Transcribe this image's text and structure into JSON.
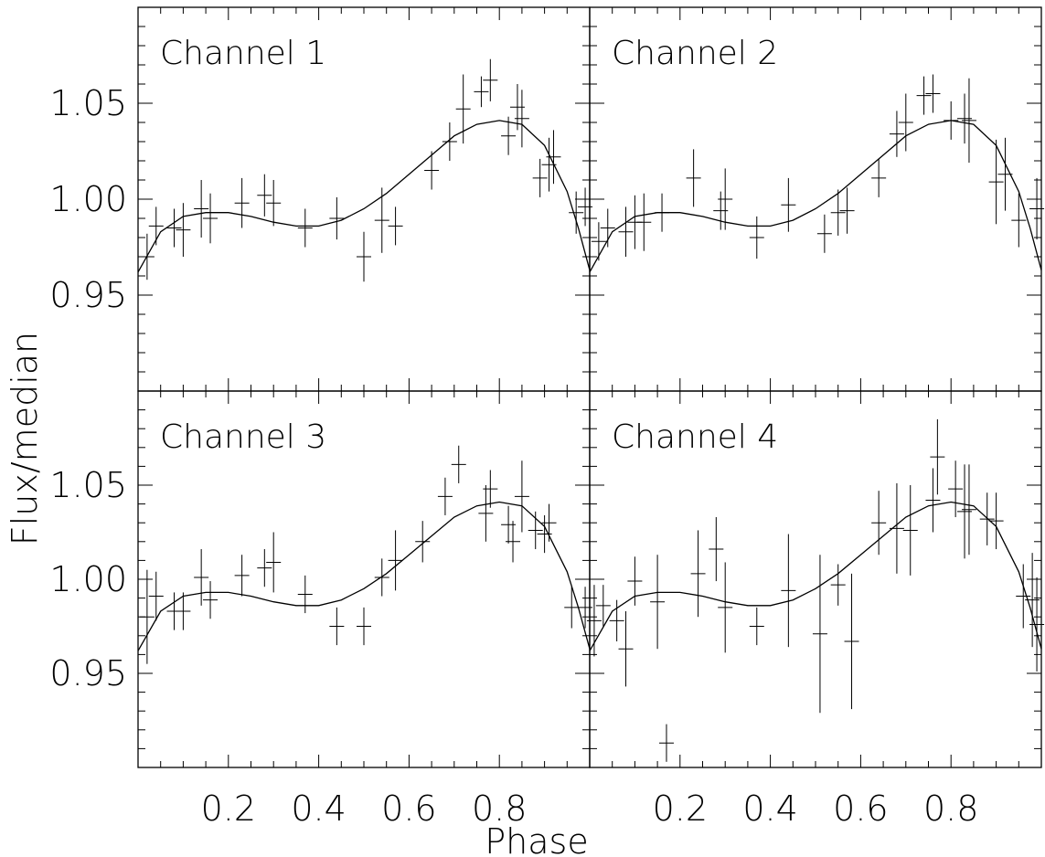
{
  "chart_data": {
    "type": "scatter",
    "xlabel": "Phase",
    "ylabel": "Flux/median",
    "xlim": [
      0,
      1.0
    ],
    "ylim": [
      0.9,
      1.1
    ],
    "x_ticks": [
      "0.2",
      "0.4",
      "0.6",
      "0.8"
    ],
    "y_ticks": [
      "0.95",
      "1.00",
      "1.05"
    ],
    "error_bars": true,
    "model_curve": {
      "phase": [
        0.0,
        0.05,
        0.1,
        0.15,
        0.2,
        0.25,
        0.3,
        0.35,
        0.4,
        0.45,
        0.5,
        0.55,
        0.6,
        0.65,
        0.7,
        0.75,
        0.8,
        0.85,
        0.9,
        0.95,
        0.975,
        1.0
      ],
      "flux": [
        0.962,
        0.983,
        0.991,
        0.993,
        0.993,
        0.991,
        0.988,
        0.986,
        0.986,
        0.989,
        0.995,
        1.003,
        1.013,
        1.023,
        1.033,
        1.039,
        1.041,
        1.039,
        1.028,
        1.004,
        0.985,
        0.963
      ]
    },
    "panels": [
      {
        "title": "Channel 1",
        "points": [
          {
            "x": 0.02,
            "y": 0.97,
            "err": 0.012
          },
          {
            "x": 0.04,
            "y": 0.986,
            "err": 0.01
          },
          {
            "x": 0.08,
            "y": 0.985,
            "err": 0.01
          },
          {
            "x": 0.1,
            "y": 0.984,
            "err": 0.014
          },
          {
            "x": 0.14,
            "y": 0.995,
            "err": 0.015
          },
          {
            "x": 0.16,
            "y": 0.99,
            "err": 0.013
          },
          {
            "x": 0.23,
            "y": 0.998,
            "err": 0.013
          },
          {
            "x": 0.28,
            "y": 1.002,
            "err": 0.011
          },
          {
            "x": 0.3,
            "y": 0.998,
            "err": 0.012
          },
          {
            "x": 0.37,
            "y": 0.985,
            "err": 0.01
          },
          {
            "x": 0.44,
            "y": 0.99,
            "err": 0.011
          },
          {
            "x": 0.5,
            "y": 0.97,
            "err": 0.013
          },
          {
            "x": 0.54,
            "y": 0.989,
            "err": 0.017
          },
          {
            "x": 0.57,
            "y": 0.986,
            "err": 0.01
          },
          {
            "x": 0.65,
            "y": 1.015,
            "err": 0.01
          },
          {
            "x": 0.69,
            "y": 1.03,
            "err": 0.01
          },
          {
            "x": 0.72,
            "y": 1.047,
            "err": 0.018
          },
          {
            "x": 0.76,
            "y": 1.056,
            "err": 0.008
          },
          {
            "x": 0.78,
            "y": 1.062,
            "err": 0.011
          },
          {
            "x": 0.82,
            "y": 1.033,
            "err": 0.01
          },
          {
            "x": 0.84,
            "y": 1.048,
            "err": 0.012
          },
          {
            "x": 0.85,
            "y": 1.042,
            "err": 0.015
          },
          {
            "x": 0.89,
            "y": 1.011,
            "err": 0.01
          },
          {
            "x": 0.91,
            "y": 1.018,
            "err": 0.014
          },
          {
            "x": 0.92,
            "y": 1.022,
            "err": 0.014
          },
          {
            "x": 0.97,
            "y": 0.993,
            "err": 0.011
          },
          {
            "x": 0.99,
            "y": 0.996,
            "err": 0.01
          }
        ]
      },
      {
        "title": "Channel 2",
        "points": [
          {
            "x": 0.02,
            "y": 0.978,
            "err": 0.01
          },
          {
            "x": 0.04,
            "y": 0.985,
            "err": 0.01
          },
          {
            "x": 0.08,
            "y": 0.983,
            "err": 0.013
          },
          {
            "x": 0.1,
            "y": 0.988,
            "err": 0.014
          },
          {
            "x": 0.12,
            "y": 0.988,
            "err": 0.015
          },
          {
            "x": 0.16,
            "y": 0.993,
            "err": 0.01
          },
          {
            "x": 0.23,
            "y": 1.011,
            "err": 0.015
          },
          {
            "x": 0.29,
            "y": 0.994,
            "err": 0.01
          },
          {
            "x": 0.3,
            "y": 1.0,
            "err": 0.016
          },
          {
            "x": 0.37,
            "y": 0.98,
            "err": 0.011
          },
          {
            "x": 0.44,
            "y": 0.997,
            "err": 0.014
          },
          {
            "x": 0.52,
            "y": 0.982,
            "err": 0.01
          },
          {
            "x": 0.55,
            "y": 0.993,
            "err": 0.012
          },
          {
            "x": 0.57,
            "y": 0.994,
            "err": 0.012
          },
          {
            "x": 0.64,
            "y": 1.011,
            "err": 0.01
          },
          {
            "x": 0.68,
            "y": 1.034,
            "err": 0.012
          },
          {
            "x": 0.7,
            "y": 1.04,
            "err": 0.015
          },
          {
            "x": 0.74,
            "y": 1.054,
            "err": 0.01
          },
          {
            "x": 0.76,
            "y": 1.055,
            "err": 0.01
          },
          {
            "x": 0.8,
            "y": 1.041,
            "err": 0.01
          },
          {
            "x": 0.83,
            "y": 1.042,
            "err": 0.013
          },
          {
            "x": 0.84,
            "y": 1.041,
            "err": 0.022
          },
          {
            "x": 0.9,
            "y": 1.009,
            "err": 0.022
          },
          {
            "x": 0.92,
            "y": 1.013,
            "err": 0.019
          },
          {
            "x": 0.95,
            "y": 0.989,
            "err": 0.014
          },
          {
            "x": 0.99,
            "y": 0.995,
            "err": 0.016
          }
        ]
      },
      {
        "title": "Channel 3",
        "points": [
          {
            "x": 0.02,
            "y": 0.98,
            "err": 0.025
          },
          {
            "x": 0.04,
            "y": 0.991,
            "err": 0.013
          },
          {
            "x": 0.08,
            "y": 0.983,
            "err": 0.01
          },
          {
            "x": 0.1,
            "y": 0.983,
            "err": 0.01
          },
          {
            "x": 0.14,
            "y": 1.001,
            "err": 0.015
          },
          {
            "x": 0.16,
            "y": 0.989,
            "err": 0.01
          },
          {
            "x": 0.23,
            "y": 1.002,
            "err": 0.011
          },
          {
            "x": 0.28,
            "y": 1.006,
            "err": 0.01
          },
          {
            "x": 0.3,
            "y": 1.009,
            "err": 0.016
          },
          {
            "x": 0.37,
            "y": 0.992,
            "err": 0.01
          },
          {
            "x": 0.44,
            "y": 0.975,
            "err": 0.01
          },
          {
            "x": 0.5,
            "y": 0.975,
            "err": 0.01
          },
          {
            "x": 0.54,
            "y": 1.001,
            "err": 0.01
          },
          {
            "x": 0.57,
            "y": 1.01,
            "err": 0.016
          },
          {
            "x": 0.63,
            "y": 1.02,
            "err": 0.011
          },
          {
            "x": 0.68,
            "y": 1.044,
            "err": 0.01
          },
          {
            "x": 0.71,
            "y": 1.061,
            "err": 0.01
          },
          {
            "x": 0.77,
            "y": 1.035,
            "err": 0.015
          },
          {
            "x": 0.78,
            "y": 1.048,
            "err": 0.01
          },
          {
            "x": 0.82,
            "y": 1.029,
            "err": 0.01
          },
          {
            "x": 0.83,
            "y": 1.02,
            "err": 0.011
          },
          {
            "x": 0.85,
            "y": 1.044,
            "err": 0.019
          },
          {
            "x": 0.88,
            "y": 1.026,
            "err": 0.01
          },
          {
            "x": 0.9,
            "y": 1.024,
            "err": 0.01
          },
          {
            "x": 0.91,
            "y": 1.03,
            "err": 0.01
          },
          {
            "x": 0.96,
            "y": 0.985,
            "err": 0.011
          },
          {
            "x": 0.99,
            "y": 0.985,
            "err": 0.011
          }
        ]
      },
      {
        "title": "Channel 4",
        "points": [
          {
            "x": 0.01,
            "y": 0.978,
            "err": 0.019
          },
          {
            "x": 0.03,
            "y": 0.986,
            "err": 0.011
          },
          {
            "x": 0.06,
            "y": 0.978,
            "err": 0.011
          },
          {
            "x": 0.08,
            "y": 0.963,
            "err": 0.02
          },
          {
            "x": 0.1,
            "y": 0.999,
            "err": 0.013
          },
          {
            "x": 0.15,
            "y": 0.988,
            "err": 0.025
          },
          {
            "x": 0.17,
            "y": 0.913,
            "err": 0.01
          },
          {
            "x": 0.24,
            "y": 1.003,
            "err": 0.023
          },
          {
            "x": 0.28,
            "y": 1.016,
            "err": 0.017
          },
          {
            "x": 0.3,
            "y": 0.985,
            "err": 0.024
          },
          {
            "x": 0.37,
            "y": 0.975,
            "err": 0.01
          },
          {
            "x": 0.44,
            "y": 0.994,
            "err": 0.03
          },
          {
            "x": 0.51,
            "y": 0.971,
            "err": 0.042
          },
          {
            "x": 0.55,
            "y": 0.997,
            "err": 0.011
          },
          {
            "x": 0.58,
            "y": 0.967,
            "err": 0.036
          },
          {
            "x": 0.64,
            "y": 1.03,
            "err": 0.017
          },
          {
            "x": 0.68,
            "y": 1.027,
            "err": 0.024
          },
          {
            "x": 0.71,
            "y": 1.026,
            "err": 0.024
          },
          {
            "x": 0.76,
            "y": 1.042,
            "err": 0.017
          },
          {
            "x": 0.77,
            "y": 1.065,
            "err": 0.02
          },
          {
            "x": 0.81,
            "y": 1.048,
            "err": 0.015
          },
          {
            "x": 0.83,
            "y": 1.036,
            "err": 0.025
          },
          {
            "x": 0.84,
            "y": 1.037,
            "err": 0.024
          },
          {
            "x": 0.88,
            "y": 1.032,
            "err": 0.014
          },
          {
            "x": 0.9,
            "y": 1.031,
            "err": 0.015
          },
          {
            "x": 0.96,
            "y": 0.991,
            "err": 0.017
          },
          {
            "x": 0.98,
            "y": 0.989,
            "err": 0.025
          },
          {
            "x": 0.99,
            "y": 0.976,
            "err": 0.025
          }
        ]
      }
    ]
  }
}
